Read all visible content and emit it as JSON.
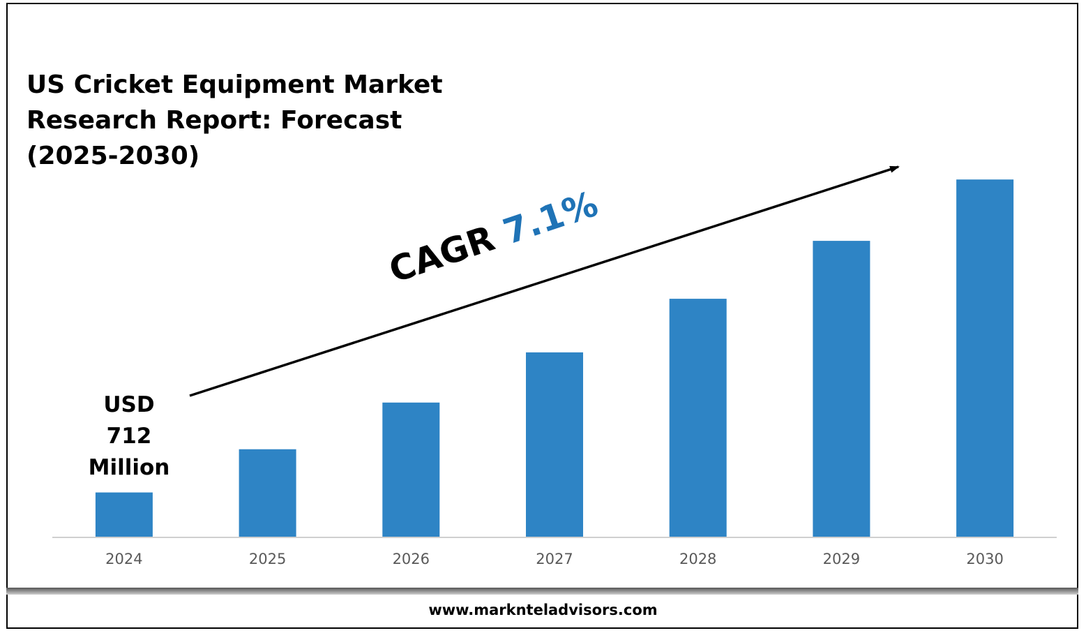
{
  "title": "US Cricket Equipment Market Research Report: Forecast (2025-2030)",
  "start_value_label": "USD 712 Million",
  "cagr": {
    "label": "CAGR",
    "value": "7.1%"
  },
  "footer": {
    "website": "www.marknteladvisors.com"
  },
  "colors": {
    "bar": "#2e84c5",
    "accent": "#1f73b6",
    "axis": "#cfcfcf",
    "tick_text": "#595959"
  },
  "chart_data": {
    "type": "bar",
    "title": "US Cricket Equipment Market Research Report: Forecast (2025-2030)",
    "categories": [
      "2024",
      "2025",
      "2026",
      "2027",
      "2028",
      "2029",
      "2030"
    ],
    "values": [
      712,
      762,
      816,
      874,
      936,
      1003,
      1074
    ],
    "value_unit": "USD Million",
    "ylim": [
      660,
      1100
    ],
    "grid": false,
    "legend": "none",
    "annotations": [
      "USD 712 Million",
      "CAGR 7.1%"
    ]
  }
}
